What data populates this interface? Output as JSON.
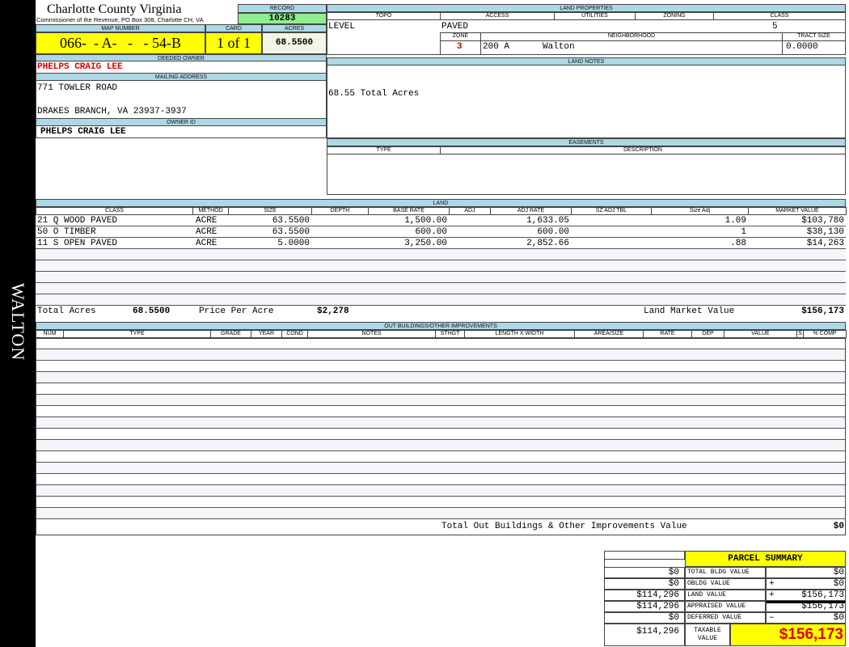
{
  "sidebar": {
    "district": "WALTON"
  },
  "header": {
    "title": "Charlotte County Virginia",
    "subtitle": "Commissioner of the Revenue, PO Box 308, Charlotte CH, VA",
    "record_label": "RECORD",
    "record": "10283",
    "map_label": "MAP NUMBER",
    "map_number": "066-  - A-   -   - 54-B",
    "card_label": "CARD",
    "card": "1 of 1",
    "acres_label": "ACRES",
    "acres": "68.5500"
  },
  "owner": {
    "deeded_label": "DEEDED OWNER",
    "deeded": "PHELPS CRAIG LEE",
    "mailing_label": "MAILING ADDRESS",
    "address1": "771 TOWLER ROAD",
    "address2": "DRAKES BRANCH, VA 23937-3937",
    "owner_id_label": "OWNER ID",
    "owner_id": "PHELPS CRAIG LEE"
  },
  "land_properties": {
    "label": "LAND PROPERTIES",
    "topo_label": "TOPO",
    "access_label": "ACCESS",
    "utilities_label": "UTILITIES",
    "zoning_label": "ZONING",
    "class_label": "CLASS",
    "topo": "LEVEL",
    "access": "PAVED",
    "class": "5",
    "zone_label": "ZONE",
    "neighborhood_label": "NEIGHBORHOOD",
    "tract_label": "TRACT SIZE",
    "zone": "3",
    "neighborhood_code": "200 A",
    "neighborhood": "Walton",
    "tract_size": "0.0000"
  },
  "land_notes": {
    "label": "LAND NOTES",
    "text": "68.55 Total Acres"
  },
  "easements": {
    "label": "EASEMENTS",
    "type_label": "TYPE",
    "desc_label": "DESCRIPTION"
  },
  "land": {
    "label": "LAND",
    "columns": [
      "CLASS",
      "METHOD",
      "SIZE",
      "DEPTH",
      "BASE RATE",
      "ADJ",
      "ADJ RATE",
      "SZ ADJ TBL",
      "Size Adj",
      "MARKET VALUE"
    ],
    "rows": [
      [
        "21 Q WOOD PAVED",
        "ACRE",
        "63.5500",
        "",
        "1,500.00",
        "",
        "1,633.05",
        "",
        "1.09",
        "$103,780"
      ],
      [
        "50 O TIMBER",
        "ACRE",
        "63.5500",
        "",
        "600.00",
        "",
        "600.00",
        "",
        "1",
        "$38,130"
      ],
      [
        "11 S OPEN PAVED",
        "ACRE",
        "5.0000",
        "",
        "3,250.00",
        "",
        "2,852.66",
        "",
        ".88",
        "$14,263"
      ]
    ],
    "total_acres_label": "Total Acres",
    "total_acres": "68.5500",
    "ppa_label": "Price Per Acre",
    "ppa": "$2,278",
    "market_label": "Land Market Value",
    "market": "$156,173"
  },
  "outbuildings": {
    "label": "OUT BUILDINGS/OTHER IMPROVEMENTS",
    "columns": [
      "NUM",
      "TYPE",
      "GRADE",
      "YEAR",
      "COND",
      "NOTES",
      "STHGT",
      "LENGTH X WIDTH",
      "AREA/SIZE",
      "RATE",
      "DEP",
      "VALUE",
      "S",
      "% COMP"
    ],
    "total_label": "Total Out Buildings & Other Improvements Value",
    "total": "$0"
  },
  "summary": {
    "title": "PARCEL SUMMARY",
    "rows": [
      {
        "prior": "$0",
        "label": "TOTAL BLDG VALUE",
        "sign": "",
        "value": "$0"
      },
      {
        "prior": "$0",
        "label": "OBLDG VALUE",
        "sign": "+",
        "value": "$0"
      },
      {
        "prior": "$114,296",
        "label": "LAND VALUE",
        "sign": "+",
        "value": "$156,173"
      },
      {
        "prior": "$114,296",
        "label": "APPRAISED VALUE",
        "sign": "",
        "value": "$156,173"
      },
      {
        "prior": "$0",
        "label": "DEFERRED VALUE",
        "sign": "–",
        "value": "$0"
      }
    ],
    "taxable_prior": "$114,296",
    "taxable_label": "TAXABLE VALUE",
    "taxable": "$156,173"
  },
  "colors": {
    "header_bg": "#add8e6",
    "record_bg": "#90ee90",
    "highlight": "#ffff00",
    "owner_red": "#e00000"
  }
}
